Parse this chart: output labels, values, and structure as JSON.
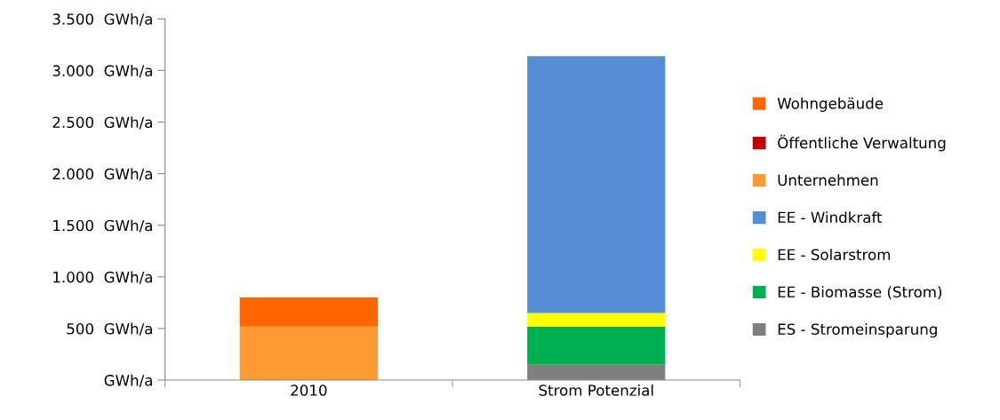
{
  "chart_data": {
    "type": "bar",
    "stacked": true,
    "categories": [
      "2010",
      "Strom Potenzial"
    ],
    "series": [
      {
        "name": "ES - Stromeinsparung",
        "color": "#7f7f7f",
        "values": [
          null,
          150
        ]
      },
      {
        "name": "EE - Biomasse (Strom)",
        "color": "#00b050",
        "values": [
          null,
          370
        ]
      },
      {
        "name": "EE - Solarstrom",
        "color": "#ffff00",
        "values": [
          null,
          130
        ]
      },
      {
        "name": "EE - Windkraft",
        "color": "#558ed5",
        "values": [
          null,
          2490
        ]
      },
      {
        "name": "Unternehmen",
        "color": "#ff9933",
        "values": [
          520,
          null
        ]
      },
      {
        "name": "Öffentliche Verwaltung",
        "color": "#c00000",
        "values": [
          null,
          null
        ]
      },
      {
        "name": "Wohngebäude",
        "color": "#ff6600",
        "values": [
          280,
          null
        ]
      }
    ],
    "ylim": [
      0,
      3500
    ],
    "yticks": [
      {
        "value": 0,
        "label": "GWh/a"
      },
      {
        "value": 500,
        "label": "500  GWh/a"
      },
      {
        "value": 1000,
        "label": "1.000  GWh/a"
      },
      {
        "value": 1500,
        "label": "1.500  GWh/a"
      },
      {
        "value": 2000,
        "label": "2.000  GWh/a"
      },
      {
        "value": 2500,
        "label": "2.500  GWh/a"
      },
      {
        "value": 3000,
        "label": "3.000  GWh/a"
      },
      {
        "value": 3500,
        "label": "3.500  GWh/a"
      }
    ],
    "grid": false,
    "legend": "right"
  }
}
